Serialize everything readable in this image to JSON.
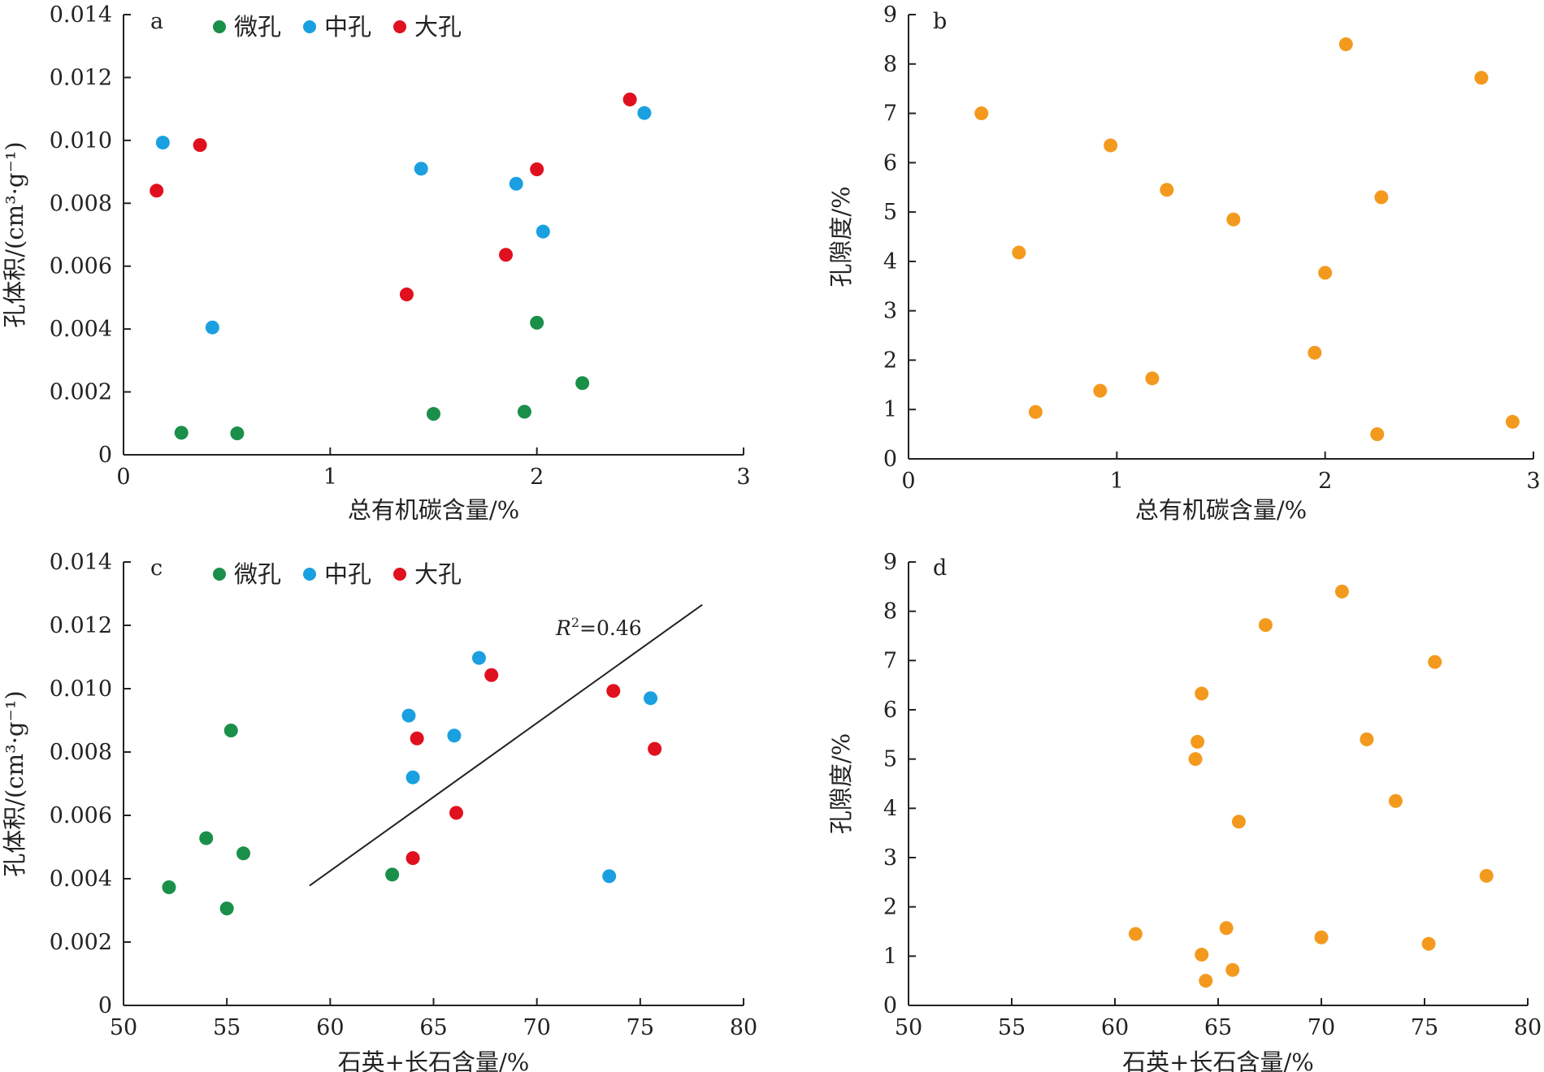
{
  "legend": [
    {
      "name": "微孔",
      "color": "#1a8f4a"
    },
    {
      "name": "中孔",
      "color": "#1aa0e0"
    },
    {
      "name": "大孔",
      "color": "#e0101e"
    }
  ],
  "colors": {
    "porosity_points": "#f39a1e",
    "axis": "#222222"
  },
  "chart_data": [
    {
      "id": "a",
      "type": "scatter",
      "panel_label": "a",
      "xlabel": "总有机碳含量/%",
      "ylabel": "孔体积/(cm³·g⁻¹)",
      "xlim": [
        0,
        3
      ],
      "ylim": [
        0,
        0.014
      ],
      "xticks": [
        "0",
        "1",
        "2",
        "3"
      ],
      "yticks": [
        "0",
        "0.002",
        "0.004",
        "0.006",
        "0.008",
        "0.010",
        "0.012",
        "0.014"
      ],
      "legend_position": "top",
      "series": [
        {
          "name": "微孔",
          "color": "#1a8f4a",
          "points": [
            [
              0.28,
              0.0007
            ],
            [
              0.55,
              0.00068
            ],
            [
              1.5,
              0.0013
            ],
            [
              1.94,
              0.00137
            ],
            [
              2.0,
              0.0042
            ],
            [
              2.22,
              0.00228
            ]
          ]
        },
        {
          "name": "中孔",
          "color": "#1aa0e0",
          "points": [
            [
              0.19,
              0.00993
            ],
            [
              0.43,
              0.00405
            ],
            [
              1.44,
              0.0091
            ],
            [
              1.9,
              0.00862
            ],
            [
              2.03,
              0.0071
            ],
            [
              2.52,
              0.01087
            ]
          ]
        },
        {
          "name": "大孔",
          "color": "#e0101e",
          "points": [
            [
              0.16,
              0.0084
            ],
            [
              0.37,
              0.00985
            ],
            [
              1.37,
              0.0051
            ],
            [
              1.85,
              0.00636
            ],
            [
              2.0,
              0.00908
            ],
            [
              2.45,
              0.0113
            ]
          ]
        }
      ]
    },
    {
      "id": "b",
      "type": "scatter",
      "panel_label": "b",
      "xlabel": "总有机碳含量/%",
      "ylabel": "孔隙度/%",
      "xlim": [
        0,
        3
      ],
      "ylim": [
        0,
        9
      ],
      "xticks": [
        "0",
        "1",
        "2",
        "3"
      ],
      "yticks": [
        "0",
        "1",
        "2",
        "3",
        "4",
        "5",
        "6",
        "7",
        "8",
        "9"
      ],
      "series": [
        {
          "color": "#f39a1e",
          "points": [
            [
              0.35,
              7.0
            ],
            [
              0.53,
              4.18
            ],
            [
              0.61,
              0.95
            ],
            [
              0.92,
              1.38
            ],
            [
              0.97,
              6.35
            ],
            [
              1.17,
              1.63
            ],
            [
              1.24,
              5.45
            ],
            [
              1.56,
              4.85
            ],
            [
              1.95,
              2.15
            ],
            [
              2.0,
              3.77
            ],
            [
              2.1,
              8.4
            ],
            [
              2.25,
              0.5
            ],
            [
              2.27,
              5.3
            ],
            [
              2.75,
              7.72
            ],
            [
              2.9,
              0.75
            ]
          ]
        }
      ]
    },
    {
      "id": "c",
      "type": "scatter",
      "panel_label": "c",
      "xlabel": "石英+长石含量/%",
      "ylabel": "孔体积/(cm³·g⁻¹)",
      "xlim": [
        50,
        80
      ],
      "ylim": [
        0,
        0.014
      ],
      "xticks": [
        "50",
        "55",
        "60",
        "65",
        "70",
        "75",
        "80"
      ],
      "yticks": [
        "0",
        "0.002",
        "0.004",
        "0.006",
        "0.008",
        "0.010",
        "0.012",
        "0.014"
      ],
      "legend_position": "top",
      "annotation": {
        "r_label": "R",
        "r_sup": "2",
        "value": "=0.46"
      },
      "trendline": {
        "x": [
          59,
          78
        ],
        "y": [
          0.00378,
          0.01265
        ]
      },
      "series": [
        {
          "name": "微孔",
          "color": "#1a8f4a",
          "points": [
            [
              52.2,
              0.00373
            ],
            [
              54.0,
              0.00528
            ],
            [
              55.0,
              0.00306
            ],
            [
              55.2,
              0.00868
            ],
            [
              55.8,
              0.0048
            ],
            [
              63.0,
              0.00413
            ]
          ]
        },
        {
          "name": "中孔",
          "color": "#1aa0e0",
          "points": [
            [
              63.8,
              0.00915
            ],
            [
              64.0,
              0.0072
            ],
            [
              66.0,
              0.00852
            ],
            [
              67.2,
              0.01097
            ],
            [
              73.5,
              0.00408
            ],
            [
              75.5,
              0.0097
            ]
          ]
        },
        {
          "name": "大孔",
          "color": "#e0101e",
          "points": [
            [
              64.0,
              0.00465
            ],
            [
              64.2,
              0.00843
            ],
            [
              66.1,
              0.00608
            ],
            [
              67.8,
              0.01043
            ],
            [
              73.7,
              0.00993
            ],
            [
              75.7,
              0.0081
            ]
          ]
        }
      ]
    },
    {
      "id": "d",
      "type": "scatter",
      "panel_label": "d",
      "xlabel": "石英+长石含量/%",
      "ylabel": "孔隙度/%",
      "xlim": [
        50,
        80
      ],
      "ylim": [
        0,
        9
      ],
      "xticks": [
        "50",
        "55",
        "60",
        "65",
        "70",
        "75",
        "80"
      ],
      "yticks": [
        "0",
        "1",
        "2",
        "3",
        "4",
        "5",
        "6",
        "7",
        "8",
        "9"
      ],
      "series": [
        {
          "color": "#f39a1e",
          "points": [
            [
              61.0,
              1.45
            ],
            [
              63.9,
              5.0
            ],
            [
              64.0,
              5.35
            ],
            [
              64.2,
              6.33
            ],
            [
              64.2,
              1.03
            ],
            [
              64.4,
              0.5
            ],
            [
              65.4,
              1.57
            ],
            [
              65.7,
              0.72
            ],
            [
              66.0,
              3.73
            ],
            [
              67.3,
              7.72
            ],
            [
              70.0,
              1.38
            ],
            [
              71.0,
              8.4
            ],
            [
              72.2,
              5.4
            ],
            [
              73.6,
              4.15
            ],
            [
              75.2,
              1.25
            ],
            [
              75.5,
              6.97
            ],
            [
              78.0,
              2.63
            ]
          ]
        }
      ]
    }
  ]
}
